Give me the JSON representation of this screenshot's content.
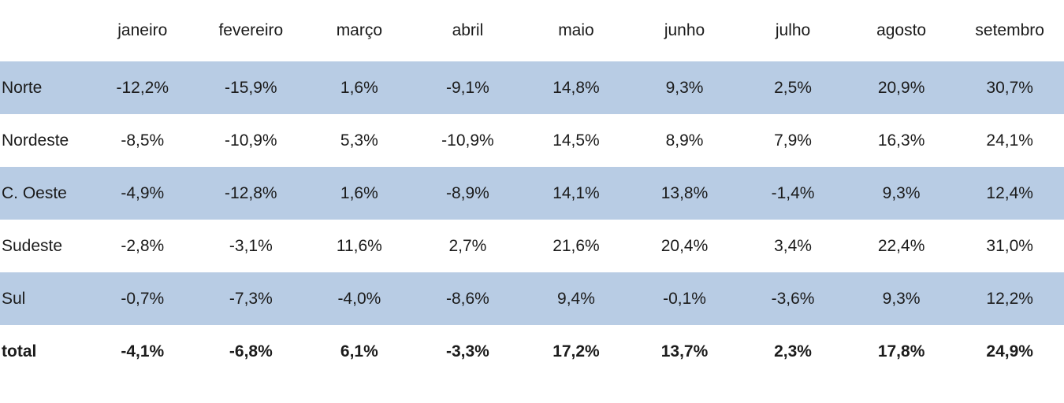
{
  "table": {
    "corner": "",
    "columns": [
      "janeiro",
      "fevereiro",
      "março",
      "abril",
      "maio",
      "junho",
      "julho",
      "agosto",
      "setembro"
    ],
    "rows": [
      {
        "label": "Norte",
        "values": [
          "-12,2%",
          "-15,9%",
          "1,6%",
          "-9,1%",
          "14,8%",
          "9,3%",
          "2,5%",
          "20,9%",
          "30,7%"
        ]
      },
      {
        "label": "Nordeste",
        "values": [
          "-8,5%",
          "-10,9%",
          "5,3%",
          "-10,9%",
          "14,5%",
          "8,9%",
          "7,9%",
          "16,3%",
          "24,1%"
        ]
      },
      {
        "label": "C. Oeste",
        "values": [
          "-4,9%",
          "-12,8%",
          "1,6%",
          "-8,9%",
          "14,1%",
          "13,8%",
          "-1,4%",
          "9,3%",
          "12,4%"
        ]
      },
      {
        "label": "Sudeste",
        "values": [
          "-2,8%",
          "-3,1%",
          "11,6%",
          "2,7%",
          "21,6%",
          "20,4%",
          "3,4%",
          "22,4%",
          "31,0%"
        ]
      },
      {
        "label": "Sul",
        "values": [
          "-0,7%",
          "-7,3%",
          "-4,0%",
          "-8,6%",
          "9,4%",
          "-0,1%",
          "-3,6%",
          "9,3%",
          "12,2%"
        ]
      },
      {
        "label": "total",
        "values": [
          "-4,1%",
          "-6,8%",
          "6,1%",
          "-3,3%",
          "17,2%",
          "13,7%",
          "2,3%",
          "17,8%",
          "24,9%"
        ]
      }
    ],
    "colors": {
      "band_fill": "#b8cce4",
      "row_fill": "#ffffff",
      "text": "#1b1b1b"
    }
  },
  "chart_data": {
    "type": "table",
    "categories": [
      "janeiro",
      "fevereiro",
      "março",
      "abril",
      "maio",
      "junho",
      "julho",
      "agosto",
      "setembro"
    ],
    "series": [
      {
        "name": "Norte",
        "values": [
          -12.2,
          -15.9,
          1.6,
          -9.1,
          14.8,
          9.3,
          2.5,
          20.9,
          30.7
        ]
      },
      {
        "name": "Nordeste",
        "values": [
          -8.5,
          -10.9,
          5.3,
          -10.9,
          14.5,
          8.9,
          7.9,
          16.3,
          24.1
        ]
      },
      {
        "name": "C. Oeste",
        "values": [
          -4.9,
          -12.8,
          1.6,
          -8.9,
          14.1,
          13.8,
          -1.4,
          9.3,
          12.4
        ]
      },
      {
        "name": "Sudeste",
        "values": [
          -2.8,
          -3.1,
          11.6,
          2.7,
          21.6,
          20.4,
          3.4,
          22.4,
          31.0
        ]
      },
      {
        "name": "Sul",
        "values": [
          -0.7,
          -7.3,
          -4.0,
          -8.6,
          9.4,
          -0.1,
          -3.6,
          9.3,
          12.2
        ]
      },
      {
        "name": "total",
        "values": [
          -4.1,
          -6.8,
          6.1,
          -3.3,
          17.2,
          13.7,
          2.3,
          17.8,
          24.9
        ]
      }
    ],
    "title": "",
    "xlabel": "",
    "ylabel": "",
    "units": "percent",
    "notes": "Monthly percentage values by Brazilian region; rows Norte, C. Oeste and Sul shaded light blue; total row bold."
  }
}
